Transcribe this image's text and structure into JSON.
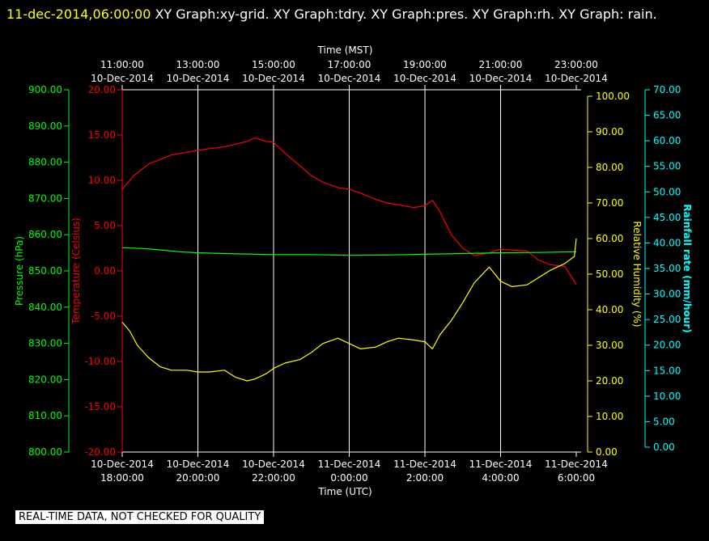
{
  "title": {
    "timestamp": "11-dec-2014,06:00:00",
    "graphs": "  XY Graph:xy-grid.  XY Graph:tdry.  XY Graph:pres.  XY Graph:rh.  XY Graph: rain."
  },
  "footer_note": "REAL-TIME DATA, NOT CHECKED FOR QUALITY",
  "colors": {
    "background": "#000000",
    "grid": "#ffffff",
    "temperature": "#ff0000",
    "pressure": "#00ff00",
    "humidity": "#ffff00",
    "rain": "#00ffff"
  },
  "chart_data": {
    "type": "line",
    "grid": true,
    "top_axis": {
      "label": "Time (MST)",
      "ticks": [
        [
          "11:00:00",
          "10-Dec-2014"
        ],
        [
          "13:00:00",
          "10-Dec-2014"
        ],
        [
          "15:00:00",
          "10-Dec-2014"
        ],
        [
          "17:00:00",
          "10-Dec-2014"
        ],
        [
          "19:00:00",
          "10-Dec-2014"
        ],
        [
          "21:00:00",
          "10-Dec-2014"
        ],
        [
          "23:00:00",
          "10-Dec-2014"
        ]
      ]
    },
    "bottom_axis": {
      "label": "Time (UTC)",
      "ticks": [
        [
          "10-Dec-2014",
          "18:00:00"
        ],
        [
          "10-Dec-2014",
          "20:00:00"
        ],
        [
          "10-Dec-2014",
          "22:00:00"
        ],
        [
          "11-Dec-2014",
          "0:00:00"
        ],
        [
          "11-Dec-2014",
          "2:00:00"
        ],
        [
          "11-Dec-2014",
          "4:00:00"
        ],
        [
          "11-Dec-2014",
          "6:00:00"
        ]
      ],
      "xlim_hours_utc": [
        18,
        30
      ]
    },
    "axes": {
      "pressure": {
        "label": "Pressure (hPa)",
        "ylim": [
          800,
          900
        ],
        "ticks": [
          "800.00",
          "810.00",
          "820.00",
          "830.00",
          "840.00",
          "850.00",
          "860.00",
          "870.00",
          "880.00",
          "890.00",
          "900.00"
        ]
      },
      "temperature": {
        "label": "Temperature (Celsius)",
        "ylim": [
          -20,
          20
        ],
        "ticks": [
          "-20.00",
          "-15.00",
          "-10.00",
          "-5.00",
          "0.00",
          "5.00",
          "10.00",
          "15.00",
          "20.00"
        ]
      },
      "humidity": {
        "label": "Relative Humidity (%)",
        "ylim": [
          0,
          100
        ],
        "ticks": [
          "0.00",
          "10.00",
          "20.00",
          "30.00",
          "40.00",
          "50.00",
          "60.00",
          "70.00",
          "80.00",
          "90.00",
          "100.00"
        ]
      },
      "rain": {
        "label": "Rainfall rate (mm/hour)",
        "ylim": [
          0,
          70
        ],
        "ticks": [
          "0.00",
          "5.00",
          "10.00",
          "15.00",
          "20.00",
          "25.00",
          "30.00",
          "35.00",
          "40.00",
          "45.00",
          "50.00",
          "55.00",
          "60.00",
          "65.00",
          "70.00"
        ]
      }
    },
    "series": [
      {
        "axis": "temperature",
        "color": "#ff0000",
        "x": [
          18.0,
          18.3,
          18.7,
          19.0,
          19.3,
          19.7,
          20.0,
          20.3,
          20.7,
          21.0,
          21.3,
          21.5,
          21.8,
          22.0,
          22.3,
          22.7,
          23.0,
          23.3,
          23.7,
          24.0,
          24.3,
          24.7,
          25.0,
          25.3,
          25.7,
          26.0,
          26.2,
          26.4,
          26.7,
          27.0,
          27.3,
          27.7,
          28.0,
          28.3,
          28.7,
          29.0,
          29.3,
          29.7,
          30.0
        ],
        "values": [
          9.0,
          10.5,
          11.8,
          12.3,
          12.8,
          13.1,
          13.3,
          13.5,
          13.7,
          14.0,
          14.3,
          14.7,
          14.3,
          14.2,
          13.0,
          11.6,
          10.5,
          9.8,
          9.2,
          9.0,
          8.6,
          7.9,
          7.5,
          7.3,
          7.0,
          7.2,
          7.8,
          6.5,
          4.0,
          2.5,
          1.7,
          2.0,
          2.4,
          2.3,
          2.2,
          1.2,
          0.7,
          0.5,
          -1.5
        ]
      },
      {
        "axis": "pressure",
        "color": "#00ff00",
        "x": [
          18.0,
          18.5,
          19.0,
          19.5,
          20.0,
          21.0,
          22.0,
          23.0,
          24.0,
          25.0,
          26.0,
          27.0,
          28.0,
          29.0,
          30.0
        ],
        "values": [
          856.4,
          856.2,
          855.8,
          855.3,
          855.0,
          854.7,
          854.5,
          854.5,
          854.3,
          854.4,
          854.6,
          854.8,
          855.0,
          855.1,
          855.3
        ]
      },
      {
        "axis": "humidity",
        "color": "#ffff00",
        "x": [
          18.0,
          18.2,
          18.4,
          18.7,
          19.0,
          19.3,
          19.7,
          20.0,
          20.3,
          20.7,
          21.0,
          21.3,
          21.5,
          21.8,
          22.0,
          22.3,
          22.7,
          23.0,
          23.3,
          23.7,
          24.0,
          24.3,
          24.7,
          25.0,
          25.3,
          25.7,
          26.0,
          26.2,
          26.4,
          26.7,
          27.0,
          27.3,
          27.7,
          28.0,
          28.3,
          28.7,
          29.0,
          29.3,
          29.7,
          29.95,
          30.0
        ],
        "values": [
          36.5,
          34.0,
          30.0,
          26.5,
          24.0,
          23.0,
          23.0,
          22.5,
          22.5,
          23.0,
          21.0,
          20.0,
          20.5,
          22.0,
          23.5,
          25.0,
          26.0,
          28.0,
          30.5,
          32.0,
          30.5,
          29.0,
          29.5,
          31.0,
          32.0,
          31.5,
          31.0,
          29.0,
          33.0,
          37.0,
          42.0,
          47.5,
          52.0,
          48.0,
          46.5,
          47.0,
          49.0,
          51.0,
          53.0,
          55.0,
          60.0
        ]
      }
    ]
  }
}
